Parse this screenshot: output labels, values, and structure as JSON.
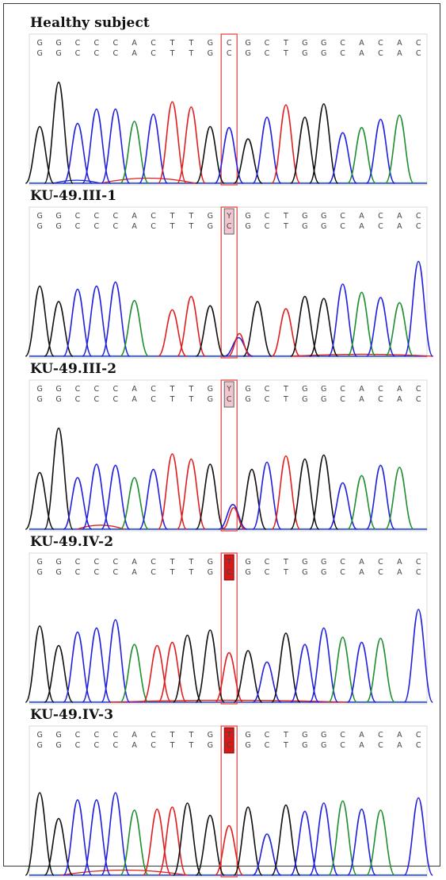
{
  "figure": {
    "highlight_color": "#e23b3b",
    "trace_colors": {
      "A": "#1f8f2f",
      "C": "#2020e0",
      "G": "#111111",
      "T": "#e02020"
    }
  },
  "chart_data": [
    {
      "type": "sequence-chromatogram",
      "title": "Healthy subject",
      "reference_sequence": [
        "G",
        "G",
        "C",
        "C",
        "C",
        "A",
        "C",
        "T",
        "T",
        "G",
        "C",
        "G",
        "C",
        "T",
        "G",
        "G",
        "C",
        "A",
        "C",
        "A",
        "C"
      ],
      "called_sequence": [
        "G",
        "G",
        "C",
        "C",
        "C",
        "A",
        "C",
        "T",
        "T",
        "G",
        "C",
        "G",
        "C",
        "T",
        "G",
        "G",
        "C",
        "A",
        "C",
        "A",
        "C"
      ],
      "highlight_position": 11,
      "variant_marker": "none",
      "peak_heights": [
        0.55,
        0.98,
        0.58,
        0.72,
        0.72,
        0.6,
        0.67,
        0.79,
        0.74,
        0.55,
        0.54,
        0.43,
        0.64,
        0.76,
        0.64,
        0.77,
        0.49,
        0.54,
        0.62,
        0.66
      ],
      "peak_sequence": [
        "G",
        "G",
        "C",
        "C",
        "C",
        "A",
        "C",
        "T",
        "T",
        "G",
        "C",
        "G",
        "C",
        "T",
        "G",
        "G",
        "C",
        "A",
        "C",
        "A"
      ],
      "secondary_peaks": [],
      "noise": [
        {
          "color": "T",
          "center": 150,
          "width": 120,
          "height": 0.05
        },
        {
          "color": "C",
          "center": 60,
          "width": 60,
          "height": 0.03
        }
      ]
    },
    {
      "type": "sequence-chromatogram",
      "title": "KU-49.III-1",
      "reference_sequence": [
        "G",
        "G",
        "C",
        "C",
        "C",
        "A",
        "C",
        "T",
        "T",
        "G",
        "C",
        "G",
        "C",
        "T",
        "G",
        "G",
        "C",
        "A",
        "C",
        "A",
        "C"
      ],
      "called_sequence": [
        "G",
        "G",
        "C",
        "C",
        "C",
        "A",
        "C",
        "T",
        "T",
        "G",
        "Y",
        "G",
        "C",
        "T",
        "G",
        "G",
        "C",
        "A",
        "C",
        "A",
        "C"
      ],
      "highlight_position": 11,
      "variant_marker": "heterozygous",
      "variant_fill": "#f2c6ce",
      "peak_heights": [
        0.68,
        0.53,
        0.65,
        0.68,
        0.72,
        0.54,
        0.45,
        0.58,
        0.49,
        0.18,
        0.53,
        0.46,
        0.58,
        0.56,
        0.7,
        0.62,
        0.57,
        0.52,
        0.92
      ],
      "peak_sequence": [
        "G",
        "G",
        "C",
        "C",
        "C",
        "A",
        "T",
        "T",
        "G",
        "C",
        "G",
        "T",
        "G",
        "G",
        "C",
        "A",
        "C",
        "A",
        "C"
      ],
      "peak_positions": [
        0,
        1,
        2,
        3,
        4,
        5,
        7,
        8,
        9,
        10.5,
        11.5,
        13,
        14,
        15,
        16,
        17,
        18,
        19,
        20
      ],
      "secondary_peaks": [
        {
          "color": "T",
          "position": 10.5,
          "height": 0.22
        }
      ],
      "noise": [
        {
          "color": "T",
          "center": 420,
          "width": 180,
          "height": 0.02
        }
      ]
    },
    {
      "type": "sequence-chromatogram",
      "title": "KU-49.III-2",
      "reference_sequence": [
        "G",
        "G",
        "C",
        "C",
        "C",
        "A",
        "C",
        "T",
        "T",
        "G",
        "C",
        "G",
        "C",
        "T",
        "G",
        "G",
        "C",
        "A",
        "C",
        "A",
        "C"
      ],
      "called_sequence": [
        "G",
        "G",
        "C",
        "C",
        "C",
        "A",
        "C",
        "T",
        "T",
        "G",
        "Y",
        "G",
        "C",
        "T",
        "G",
        "G",
        "C",
        "A",
        "C",
        "A",
        "C"
      ],
      "highlight_position": 11,
      "variant_marker": "heterozygous",
      "variant_fill": "#f2c6ce",
      "peak_heights": [
        0.55,
        0.98,
        0.5,
        0.63,
        0.62,
        0.5,
        0.58,
        0.73,
        0.68,
        0.63,
        0.24,
        0.58,
        0.65,
        0.71,
        0.68,
        0.72,
        0.45,
        0.52,
        0.62,
        0.6
      ],
      "peak_sequence": [
        "G",
        "G",
        "C",
        "C",
        "C",
        "A",
        "C",
        "T",
        "T",
        "G",
        "C",
        "G",
        "C",
        "T",
        "G",
        "G",
        "C",
        "A",
        "C",
        "A"
      ],
      "peak_positions": [
        0,
        1,
        2,
        3,
        4,
        5,
        6,
        7,
        8,
        9,
        10.2,
        11.2,
        12,
        13,
        14,
        15,
        16,
        17,
        18,
        19
      ],
      "secondary_peaks": [
        {
          "color": "T",
          "position": 10.2,
          "height": 0.21
        }
      ],
      "noise": [
        {
          "color": "T",
          "center": 90,
          "width": 60,
          "height": 0.04
        }
      ]
    },
    {
      "type": "sequence-chromatogram",
      "title": "KU-49.IV-2",
      "reference_sequence": [
        "G",
        "G",
        "C",
        "C",
        "C",
        "A",
        "C",
        "T",
        "T",
        "G",
        "C",
        "G",
        "C",
        "T",
        "G",
        "G",
        "C",
        "A",
        "C",
        "A",
        "C"
      ],
      "called_sequence": [
        "G",
        "G",
        "C",
        "C",
        "C",
        "A",
        "C",
        "T",
        "T",
        "G",
        "T",
        "G",
        "C",
        "T",
        "G",
        "G",
        "C",
        "A",
        "C",
        "A",
        "C"
      ],
      "highlight_position": 11,
      "variant_marker": "homozygous",
      "variant_fill": "#d61a1a",
      "peak_heights": [
        0.74,
        0.55,
        0.68,
        0.72,
        0.8,
        0.56,
        0.55,
        0.58,
        0.65,
        0.7,
        0.48,
        0.5,
        0.39,
        0.67,
        0.56,
        0.72,
        0.63,
        0.58,
        0.62,
        0.9
      ],
      "peak_sequence": [
        "G",
        "G",
        "C",
        "C",
        "C",
        "A",
        "T",
        "T",
        "G",
        "G",
        "T",
        "G",
        "C",
        "G",
        "C",
        "C",
        "A",
        "C",
        "A",
        "C"
      ],
      "peak_positions": [
        0,
        1,
        2,
        3,
        4,
        5,
        6.2,
        7,
        7.8,
        9,
        10,
        11,
        12,
        13,
        14,
        15,
        16,
        17,
        18,
        20
      ],
      "secondary_peaks": [],
      "noise": [
        {
          "color": "T",
          "center": 250,
          "width": 300,
          "height": 0.02
        }
      ]
    },
    {
      "type": "sequence-chromatogram",
      "title": "KU-49.IV-3",
      "reference_sequence": [
        "G",
        "G",
        "C",
        "C",
        "C",
        "A",
        "C",
        "T",
        "T",
        "G",
        "C",
        "G",
        "C",
        "T",
        "G",
        "G",
        "C",
        "A",
        "C",
        "A",
        "C"
      ],
      "called_sequence": [
        "G",
        "G",
        "C",
        "C",
        "C",
        "A",
        "C",
        "T",
        "T",
        "G",
        "T",
        "G",
        "C",
        "T",
        "G",
        "G",
        "C",
        "A",
        "C",
        "A",
        "C"
      ],
      "highlight_position": 11,
      "variant_marker": "homozygous",
      "variant_fill": "#d61a1a",
      "peak_heights": [
        0.8,
        0.55,
        0.73,
        0.73,
        0.8,
        0.63,
        0.64,
        0.66,
        0.7,
        0.58,
        0.48,
        0.66,
        0.4,
        0.68,
        0.62,
        0.7,
        0.72,
        0.64,
        0.63,
        0.75
      ],
      "peak_sequence": [
        "G",
        "G",
        "C",
        "C",
        "C",
        "A",
        "T",
        "T",
        "G",
        "G",
        "T",
        "G",
        "C",
        "G",
        "C",
        "C",
        "A",
        "C",
        "A",
        "C"
      ],
      "peak_positions": [
        0,
        1,
        2,
        3,
        4,
        5,
        6.2,
        7,
        7.8,
        9,
        10,
        11,
        12,
        13,
        14,
        15,
        16,
        17,
        18,
        20
      ],
      "secondary_peaks": [],
      "noise": [
        {
          "color": "T",
          "center": 120,
          "width": 160,
          "height": 0.05
        }
      ]
    }
  ]
}
